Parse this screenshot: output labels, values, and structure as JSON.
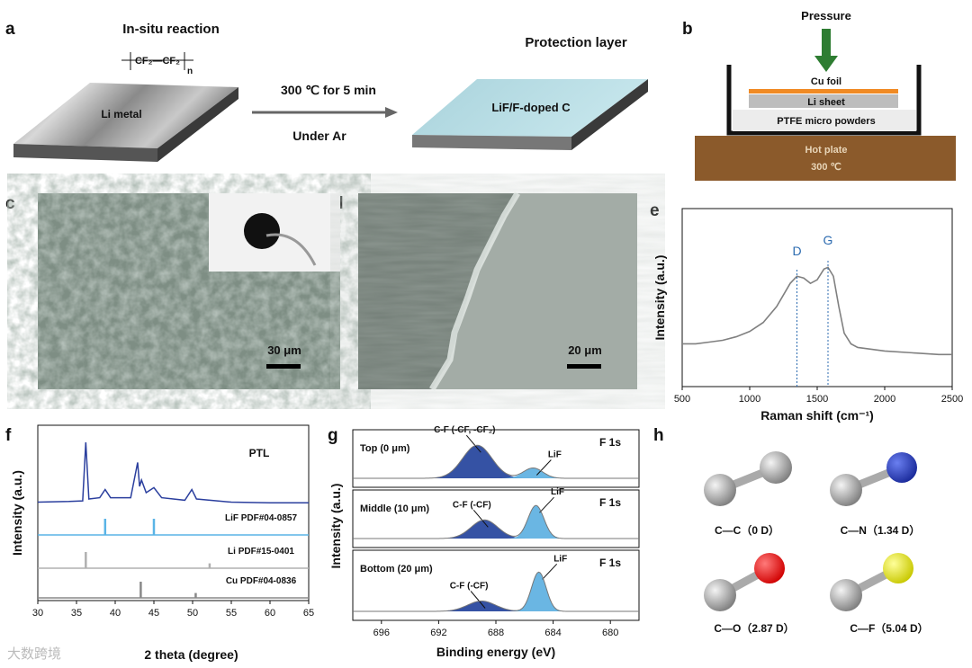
{
  "panel_labels": [
    "a",
    "b",
    "c",
    "d",
    "e",
    "f",
    "g",
    "h"
  ],
  "a": {
    "title_left": "In-situ reaction",
    "formula": "CF₂—CF₂",
    "formula_n": "n",
    "slab_left": "Li metal",
    "condition_top": "300 ℃ for 5 min",
    "condition_bottom": "Under Ar",
    "title_right": "Protection layer",
    "slab_right": "LiF/F-doped C"
  },
  "b": {
    "pressure": "Pressure",
    "cu": "Cu foil",
    "li": "Li sheet",
    "ptfe": "PTFE micro powders",
    "plate": "Hot plate",
    "temp": "300 ℃"
  },
  "c": {
    "scale": "30 μm"
  },
  "d": {
    "scale": "20 μm"
  },
  "h": {
    "molecules": [
      "C—C（0 D）",
      "C—N（1.34 D）",
      "C—O（2.87 D）",
      "C—F（5.04 D）"
    ]
  },
  "watermark": "大数跨境",
  "chart_data": [
    {
      "type": "line",
      "xlabel": "Raman shift (cm⁻¹)",
      "ylabel": "Intensity (a.u.)",
      "color": "#808080",
      "x": [
        500,
        600,
        700,
        800,
        900,
        1000,
        1100,
        1200,
        1300,
        1350,
        1400,
        1450,
        1500,
        1550,
        1580,
        1620,
        1660,
        1700,
        1750,
        1800,
        1900,
        2000,
        2200,
        2400,
        2500
      ],
      "values": [
        0.24,
        0.24,
        0.25,
        0.26,
        0.28,
        0.31,
        0.36,
        0.45,
        0.58,
        0.62,
        0.61,
        0.58,
        0.6,
        0.66,
        0.67,
        0.62,
        0.45,
        0.3,
        0.24,
        0.22,
        0.21,
        0.2,
        0.19,
        0.18,
        0.18
      ],
      "xlim": [
        500,
        2500
      ],
      "xticks": [
        500,
        1000,
        1500,
        2000,
        2500
      ],
      "ylim": [
        0,
        1
      ],
      "annotations": [
        {
          "text": "D",
          "x": 1350
        },
        {
          "text": "G",
          "x": 1580
        }
      ]
    },
    {
      "type": "pattern",
      "xlabel": "2 theta (degree)",
      "ylabel": "Intensity (a.u.)",
      "xlim": [
        30,
        65
      ],
      "xticks": [
        30,
        35,
        40,
        45,
        50,
        55,
        60,
        65
      ],
      "series": [
        {
          "name": "PTL",
          "color": "#2b3f9e",
          "x": [
            30,
            34,
            35.8,
            36.2,
            36.6,
            38,
            38.7,
            39.4,
            42,
            42.9,
            43.15,
            43.4,
            44,
            45,
            46,
            49,
            49.9,
            50.5,
            55,
            60,
            65
          ],
          "values": [
            0.05,
            0.06,
            0.07,
            1.0,
            0.1,
            0.12,
            0.25,
            0.12,
            0.12,
            0.68,
            0.3,
            0.4,
            0.2,
            0.28,
            0.12,
            0.08,
            0.25,
            0.1,
            0.05,
            0.04,
            0.04
          ]
        }
      ],
      "references": [
        {
          "name": "LiF PDF#04-0857",
          "color": "#5ab4e6",
          "positions": [
            38.7,
            45.0
          ],
          "values": [
            1,
            1
          ]
        },
        {
          "name": "Li PDF#15-0401",
          "color": "#b0b0b0",
          "positions": [
            36.2,
            52.2
          ],
          "values": [
            1,
            0.3
          ]
        },
        {
          "name": "Cu PDF#04-0836",
          "color": "#888888",
          "positions": [
            43.3,
            50.4
          ],
          "values": [
            1,
            0.3
          ]
        }
      ]
    },
    {
      "type": "xps",
      "xlabel": "Binding energy (eV)",
      "ylabel": "Intensity (a.u.)",
      "xlim": [
        698,
        678
      ],
      "xticks": [
        696,
        692,
        688,
        684,
        680
      ],
      "panels": [
        {
          "name": "Top (0 μm)",
          "tag": "F 1s",
          "peaks": [
            {
              "label": "C-F (-CF, -CF₂)",
              "color": "#1f3f9a",
              "center": 689.3,
              "height": 0.8,
              "fwhm": 2.4
            },
            {
              "label": "LiF",
              "color": "#5aaee0",
              "center": 685.4,
              "height": 0.25,
              "fwhm": 1.6
            }
          ]
        },
        {
          "name": "Middle (10 μm)",
          "tag": "F 1s",
          "peaks": [
            {
              "label": "C-F (-CF)",
              "color": "#1f3f9a",
              "center": 688.8,
              "height": 0.45,
              "fwhm": 2.2
            },
            {
              "label": "LiF",
              "color": "#5aaee0",
              "center": 685.2,
              "height": 0.8,
              "fwhm": 1.3
            }
          ]
        },
        {
          "name": "Bottom (20 μm)",
          "tag": "F 1s",
          "peaks": [
            {
              "label": "C-F (-CF)",
              "color": "#1f3f9a",
              "center": 689.0,
              "height": 0.25,
              "fwhm": 2.3
            },
            {
              "label": "LiF",
              "color": "#5aaee0",
              "center": 685.0,
              "height": 0.95,
              "fwhm": 1.2
            }
          ]
        }
      ]
    }
  ]
}
